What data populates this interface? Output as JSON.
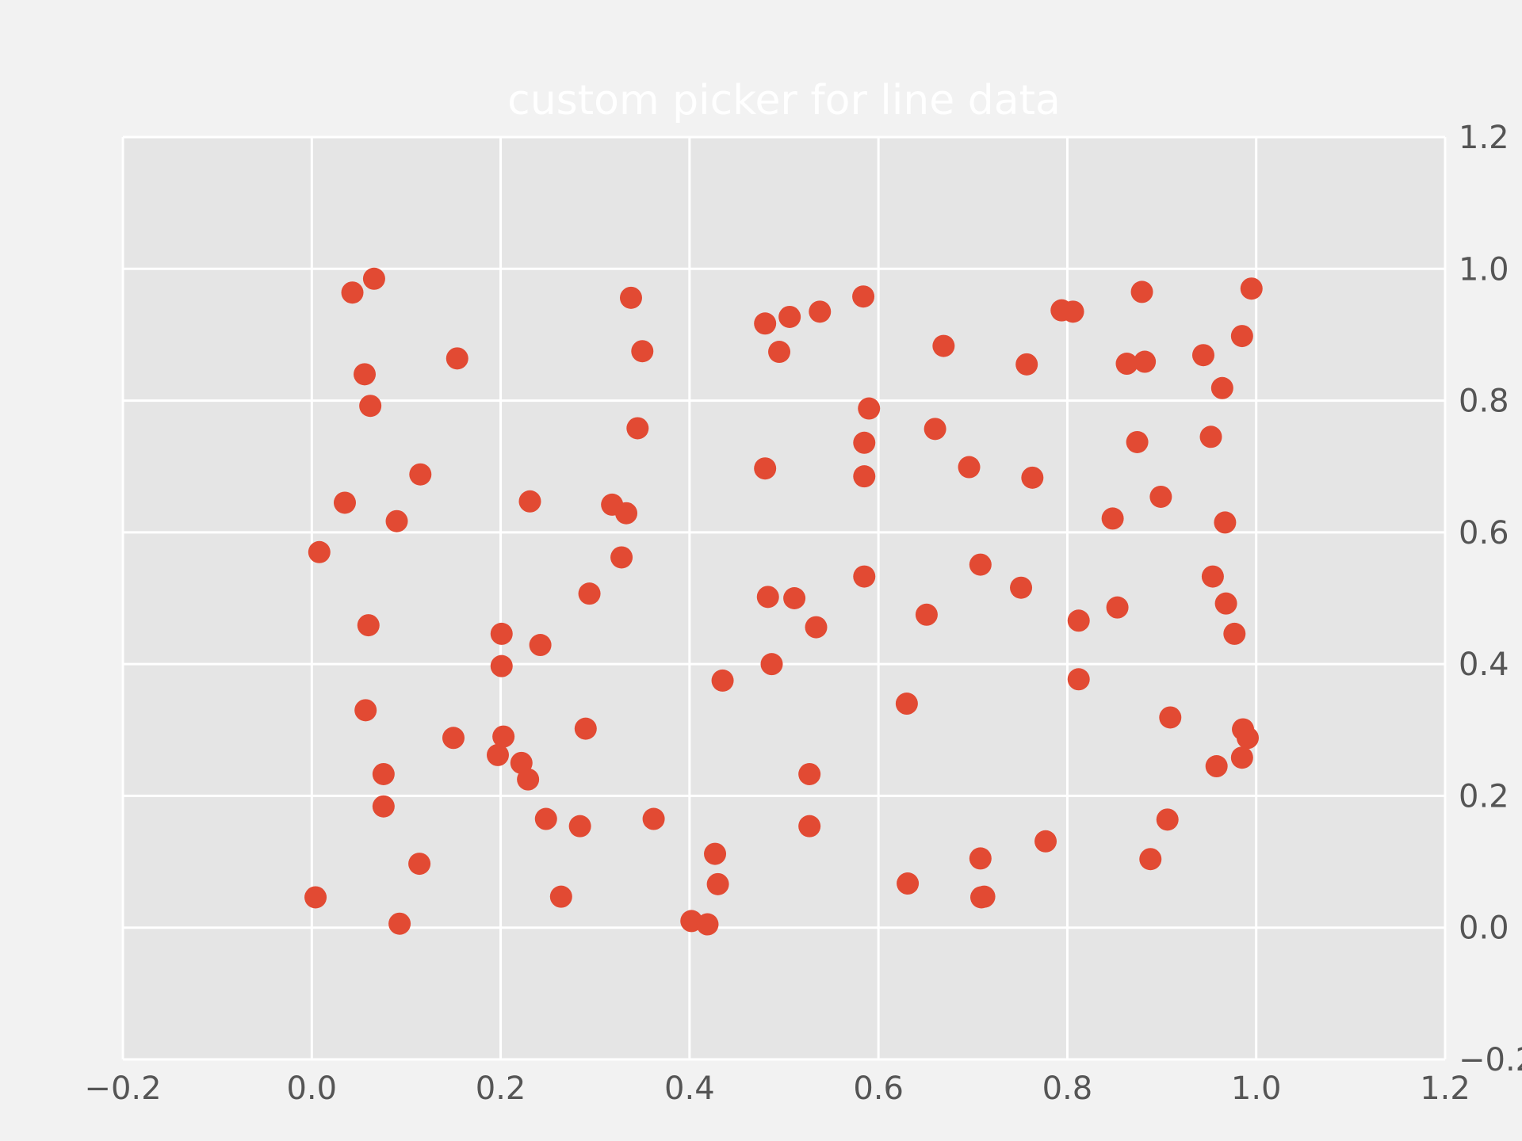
{
  "chart_data": {
    "type": "scatter",
    "title": "custom picker for line data",
    "xlabel": "",
    "ylabel": "",
    "xlim": [
      -0.2,
      1.2
    ],
    "ylim": [
      -0.2,
      1.2
    ],
    "xticks": [
      -0.2,
      0.0,
      0.2,
      0.4,
      0.6,
      0.8,
      1.0,
      1.2
    ],
    "yticks": [
      -0.2,
      0.0,
      0.2,
      0.4,
      0.6,
      0.8,
      1.0,
      1.2
    ],
    "xtick_labels": [
      "−0.2",
      "0.0",
      "0.2",
      "0.4",
      "0.6",
      "0.8",
      "1.0",
      "1.2"
    ],
    "ytick_labels": [
      "−0.2",
      "0.0",
      "0.2",
      "0.4",
      "0.6",
      "0.8",
      "1.0",
      "1.2"
    ],
    "y_axis_side": "right",
    "grid": true,
    "marker_color": "#e24a33",
    "plot_background": "#e5e5e5",
    "figure_background": "#f2f2f2",
    "series": [
      {
        "points": [
          [
            0.066,
            0.985
          ],
          [
            0.043,
            0.964
          ],
          [
            0.056,
            0.84
          ],
          [
            0.062,
            0.792
          ],
          [
            0.154,
            0.864
          ],
          [
            0.115,
            0.688
          ],
          [
            0.035,
            0.645
          ],
          [
            0.09,
            0.617
          ],
          [
            0.008,
            0.57
          ],
          [
            0.06,
            0.459
          ],
          [
            0.057,
            0.33
          ],
          [
            0.076,
            0.233
          ],
          [
            0.076,
            0.184
          ],
          [
            0.114,
            0.097
          ],
          [
            0.004,
            0.046
          ],
          [
            0.093,
            0.006
          ],
          [
            0.15,
            0.288
          ],
          [
            0.197,
            0.262
          ],
          [
            0.203,
            0.29
          ],
          [
            0.222,
            0.25
          ],
          [
            0.229,
            0.225
          ],
          [
            0.248,
            0.165
          ],
          [
            0.284,
            0.154
          ],
          [
            0.264,
            0.047
          ],
          [
            0.201,
            0.446
          ],
          [
            0.201,
            0.397
          ],
          [
            0.242,
            0.429
          ],
          [
            0.231,
            0.647
          ],
          [
            0.29,
            0.302
          ],
          [
            0.294,
            0.507
          ],
          [
            0.328,
            0.562
          ],
          [
            0.318,
            0.642
          ],
          [
            0.333,
            0.629
          ],
          [
            0.345,
            0.758
          ],
          [
            0.35,
            0.875
          ],
          [
            0.338,
            0.956
          ],
          [
            0.362,
            0.165
          ],
          [
            0.402,
            0.01
          ],
          [
            0.419,
            0.005
          ],
          [
            0.427,
            0.112
          ],
          [
            0.43,
            0.066
          ],
          [
            0.435,
            0.375
          ],
          [
            0.48,
            0.917
          ],
          [
            0.495,
            0.874
          ],
          [
            0.506,
            0.927
          ],
          [
            0.538,
            0.935
          ],
          [
            0.48,
            0.697
          ],
          [
            0.483,
            0.502
          ],
          [
            0.511,
            0.5
          ],
          [
            0.487,
            0.4
          ],
          [
            0.534,
            0.456
          ],
          [
            0.527,
            0.233
          ],
          [
            0.527,
            0.154
          ],
          [
            0.584,
            0.958
          ],
          [
            0.59,
            0.788
          ],
          [
            0.585,
            0.736
          ],
          [
            0.585,
            0.685
          ],
          [
            0.585,
            0.533
          ],
          [
            0.63,
            0.34
          ],
          [
            0.631,
            0.067
          ],
          [
            0.669,
            0.883
          ],
          [
            0.66,
            0.757
          ],
          [
            0.696,
            0.699
          ],
          [
            0.651,
            0.475
          ],
          [
            0.708,
            0.551
          ],
          [
            0.708,
            0.105
          ],
          [
            0.709,
            0.046
          ],
          [
            0.712,
            0.047
          ],
          [
            0.757,
            0.855
          ],
          [
            0.763,
            0.683
          ],
          [
            0.751,
            0.516
          ],
          [
            0.777,
            0.131
          ],
          [
            0.794,
            0.937
          ],
          [
            0.806,
            0.935
          ],
          [
            0.812,
            0.466
          ],
          [
            0.812,
            0.377
          ],
          [
            0.848,
            0.621
          ],
          [
            0.853,
            0.486
          ],
          [
            0.863,
            0.856
          ],
          [
            0.874,
            0.737
          ],
          [
            0.879,
            0.965
          ],
          [
            0.882,
            0.859
          ],
          [
            0.899,
            0.654
          ],
          [
            0.888,
            0.104
          ],
          [
            0.906,
            0.164
          ],
          [
            0.909,
            0.319
          ],
          [
            0.944,
            0.869
          ],
          [
            0.952,
            0.745
          ],
          [
            0.964,
            0.819
          ],
          [
            0.967,
            0.615
          ],
          [
            0.954,
            0.533
          ],
          [
            0.968,
            0.492
          ],
          [
            0.977,
            0.446
          ],
          [
            0.958,
            0.245
          ],
          [
            0.985,
            0.898
          ],
          [
            0.995,
            0.97
          ],
          [
            0.986,
            0.301
          ],
          [
            0.991,
            0.288
          ],
          [
            0.985,
            0.258
          ]
        ]
      }
    ]
  }
}
